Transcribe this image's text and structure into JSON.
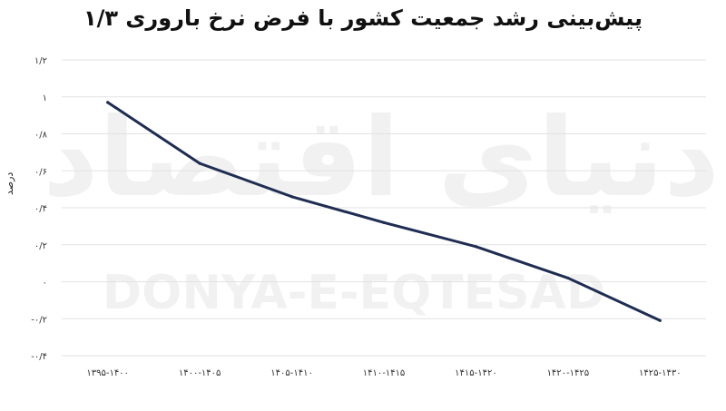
{
  "watermark": {
    "latin": "DONYA-E-EQTESAD",
    "persian": "دنیای اقتصاد"
  },
  "chart_data": {
    "type": "line",
    "title": "پیش‌بینی رشد جمعیت کشور با فرض نرخ باروری ۱/۳",
    "xlabel": "",
    "ylabel": "درصد",
    "categories": [
      "۱۳۹۵-۱۴۰۰",
      "۱۴۰۰-۱۴۰۵",
      "۱۴۰۵-۱۴۱۰",
      "۱۴۱۰-۱۴۱۵",
      "۱۴۱۵-۱۴۲۰",
      "۱۴۲۰-۱۴۲۵",
      "۱۴۲۵-۱۴۳۰"
    ],
    "series": [
      {
        "values": [
          0.97,
          0.64,
          0.46,
          0.32,
          0.19,
          0.02,
          -0.21
        ]
      }
    ],
    "ylim": [
      -0.4,
      1.2
    ],
    "yticks": [
      1.2,
      1,
      0.8,
      0.6,
      0.4,
      0.2,
      0,
      -0.2,
      -0.4
    ],
    "ytick_labels": [
      "۱/۲",
      "۱",
      "۰/۸",
      "۰/۶",
      "۰/۴",
      "۰/۲",
      "۰",
      "-۰/۲",
      "-۰/۴"
    ],
    "grid": true,
    "legend": "none",
    "line_color": "#1f2d52",
    "grid_color": "#e2e2e2"
  }
}
